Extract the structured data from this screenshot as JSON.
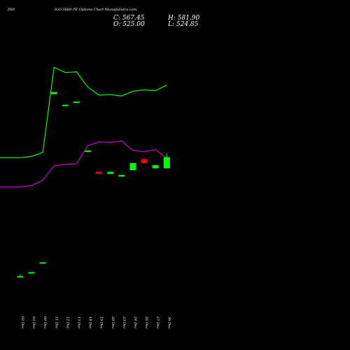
{
  "header": {
    "symbol": "IND",
    "title": "IGO 5600 PE Options Chart MunafaSutra.com",
    "close": "C: 567.45",
    "open": "O: 525.00",
    "high": "H: 581.90",
    "low": "L: 524.85"
  },
  "colors": {
    "background": "#000000",
    "upper_band": "#00ff00",
    "lower_band": "#cc00cc",
    "up_candle": "#00ff00",
    "down_candle": "#ff0000",
    "text": "#ffffff"
  },
  "chart_data": {
    "type": "candlestick",
    "title": "IGO 5600 PE Options Chart MunafaSutra.com",
    "categories": [
      "02 Dec",
      "03 Dec",
      "09 Dec",
      "11 Dec",
      "12 Dec",
      "13 Dec",
      "18 Dec",
      "19 Dec",
      "20 Dec",
      "23 Dec",
      "24 Dec",
      "26 Dec",
      "27 Dec",
      "30 Dec"
    ],
    "ohlc_estimated": [
      {
        "open": 120,
        "high": 128,
        "low": 118,
        "close": 120,
        "dir": "up"
      },
      {
        "open": 135,
        "high": 135,
        "low": 135,
        "close": 135,
        "dir": "up"
      },
      {
        "open": 172,
        "high": 172,
        "low": 172,
        "close": 172,
        "dir": "up"
      },
      {
        "open": 812,
        "high": 812,
        "low": 804,
        "close": 804,
        "dir": "up"
      },
      {
        "open": 764,
        "high": 764,
        "low": 764,
        "close": 764,
        "dir": "up"
      },
      {
        "open": 776,
        "high": 776,
        "low": 776,
        "close": 776,
        "dir": "up"
      },
      {
        "open": 592,
        "high": 592,
        "low": 592,
        "close": 592,
        "dir": "up"
      },
      {
        "open": 512,
        "high": 512,
        "low": 504,
        "close": 504,
        "dir": "down"
      },
      {
        "open": 504,
        "high": 512,
        "low": 504,
        "close": 512,
        "dir": "up"
      },
      {
        "open": 494,
        "high": 500,
        "low": 494,
        "close": 500,
        "dir": "up"
      },
      {
        "open": 518,
        "high": 545,
        "low": 518,
        "close": 545,
        "dir": "up"
      },
      {
        "open": 560,
        "high": 560,
        "low": 545,
        "close": 545,
        "dir": "down"
      },
      {
        "open": 525,
        "high": 537,
        "low": 525,
        "close": 537,
        "dir": "up"
      },
      {
        "open": 525,
        "high": 582,
        "low": 525,
        "close": 567,
        "dir": "up"
      }
    ],
    "upper_band": [
      565,
      565,
      570,
      585,
      905,
      885,
      888,
      830,
      800,
      802,
      797,
      815,
      820,
      817,
      838
    ],
    "lower_band": [
      455,
      455,
      460,
      480,
      535,
      540,
      542,
      610,
      625,
      622,
      628,
      592,
      588,
      595,
      563
    ],
    "band_x_index": [
      -1.5,
      0,
      1,
      2,
      3,
      4,
      5,
      6,
      7,
      8,
      9,
      10,
      11,
      12,
      13
    ],
    "ylim": [
      0,
      1000
    ],
    "grid": false,
    "legend": "none"
  }
}
